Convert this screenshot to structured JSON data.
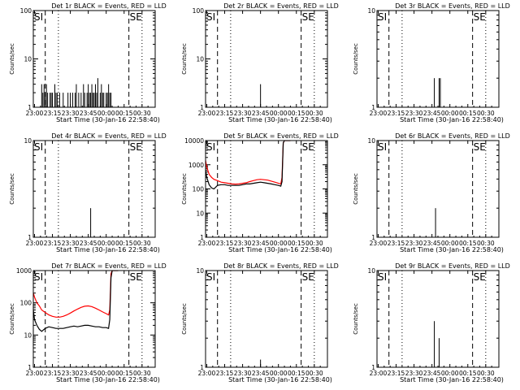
{
  "figure": {
    "xlabel": "Start Time (30-Jan-16 22:58:40)",
    "ylabel": "Counts/sec",
    "xticks": [
      "23:00",
      "23:15",
      "23:30",
      "23:45",
      "00:00",
      "00:15",
      "00:30"
    ],
    "marker_labels": {
      "start": "SI",
      "end": "SE"
    },
    "colors": {
      "events": "#000000",
      "lld": "#ff0000"
    }
  },
  "chart_data": [
    {
      "type": "line",
      "title": "Det 1r BLACK = Events, RED = LLD",
      "yscale": "log",
      "ylim": [
        1,
        100
      ],
      "yticks": [
        "1",
        "10",
        "100"
      ],
      "series": [
        {
          "name": "Events",
          "color": "#000000",
          "kind": "spikes",
          "x": [
            6,
            7,
            8,
            9,
            10,
            11,
            12,
            13,
            14,
            15,
            16,
            17,
            18,
            19,
            20,
            21,
            22,
            23,
            24,
            25,
            26,
            27,
            28,
            29,
            30,
            31,
            32,
            33,
            34,
            35,
            36,
            37,
            38,
            39,
            40,
            41,
            42,
            43,
            44,
            45,
            46,
            47,
            48,
            49,
            50,
            51,
            52,
            53,
            54,
            55,
            56,
            57,
            58,
            59,
            60,
            61,
            62,
            63,
            64
          ],
          "y": [
            3,
            2,
            3,
            2,
            3,
            2,
            1,
            2,
            2,
            2,
            1,
            3,
            2,
            2,
            1,
            2,
            1,
            1,
            2,
            1,
            1,
            1,
            2,
            1,
            2,
            1,
            2,
            1,
            2,
            3,
            1,
            2,
            1,
            2,
            1,
            3,
            2,
            1,
            2,
            3,
            2,
            2,
            3,
            2,
            2,
            3,
            2,
            4,
            1,
            2,
            3,
            2,
            2,
            1,
            2,
            2,
            3,
            2,
            2
          ]
        }
      ]
    },
    {
      "type": "line",
      "title": "Det 2r BLACK = Events, RED = LLD",
      "yscale": "log",
      "ylim": [
        1,
        100
      ],
      "yticks": [
        "1",
        "10",
        "100"
      ],
      "series": [
        {
          "name": "Events",
          "color": "#000000",
          "kind": "spikes",
          "x": [
            45
          ],
          "y": [
            3
          ]
        }
      ]
    },
    {
      "type": "line",
      "title": "Det 3r BLACK = Events, RED = LLD",
      "yscale": "log",
      "ylim": [
        1,
        10
      ],
      "yticks": [
        "1",
        "10"
      ],
      "series": [
        {
          "name": "Events",
          "color": "#000000",
          "kind": "spikes",
          "x": [
            47,
            51,
            52
          ],
          "y": [
            2,
            2,
            2
          ]
        }
      ]
    },
    {
      "type": "line",
      "title": "Det 4r BLACK = Events, RED = LLD",
      "yscale": "log",
      "ylim": [
        1,
        10
      ],
      "yticks": [
        "1",
        "10"
      ],
      "series": [
        {
          "name": "Events",
          "color": "#000000",
          "kind": "spikes",
          "x": [
            47
          ],
          "y": [
            2
          ]
        }
      ]
    },
    {
      "type": "line",
      "title": "Det 5r BLACK = Events, RED = LLD",
      "yscale": "log",
      "ylim": [
        1,
        10000
      ],
      "yticks": [
        "1",
        "10",
        "100",
        "1000",
        "10000"
      ],
      "series": [
        {
          "name": "LLD",
          "color": "#ff0000",
          "kind": "line",
          "x": [
            -2,
            -1,
            0,
            2,
            4,
            6,
            9,
            12,
            15,
            18,
            21,
            24,
            27,
            30,
            33,
            36,
            39,
            42,
            45,
            48,
            51,
            54,
            57,
            60,
            62,
            63,
            64,
            65,
            66,
            68,
            70
          ],
          "y": [
            8000,
            1500,
            800,
            400,
            300,
            250,
            220,
            190,
            180,
            170,
            160,
            158,
            160,
            170,
            180,
            200,
            220,
            240,
            250,
            240,
            230,
            210,
            190,
            170,
            160,
            300,
            8000,
            10000,
            10000,
            10000,
            10000
          ]
        },
        {
          "name": "Events",
          "color": "#000000",
          "kind": "line",
          "x": [
            -2,
            -1,
            0,
            2,
            4,
            6,
            9,
            12,
            15,
            18,
            21,
            24,
            27,
            30,
            33,
            36,
            39,
            42,
            45,
            48,
            51,
            54,
            57,
            60,
            62,
            63,
            64,
            65,
            66,
            68,
            70
          ],
          "y": [
            3000,
            600,
            300,
            150,
            110,
            100,
            140,
            150,
            150,
            140,
            140,
            140,
            140,
            150,
            160,
            160,
            170,
            180,
            190,
            180,
            170,
            160,
            150,
            140,
            130,
            200,
            8000,
            10000,
            10000,
            10000,
            10000
          ]
        }
      ]
    },
    {
      "type": "line",
      "title": "Det 6r BLACK = Events, RED = LLD",
      "yscale": "log",
      "ylim": [
        1,
        10
      ],
      "yticks": [
        "1",
        "10"
      ],
      "series": [
        {
          "name": "Events",
          "color": "#000000",
          "kind": "spikes",
          "x": [
            48
          ],
          "y": [
            2
          ]
        }
      ]
    },
    {
      "type": "line",
      "title": "Det 7r BLACK = Events, RED = LLD",
      "yscale": "log",
      "ylim": [
        1,
        1000
      ],
      "yticks": [
        "1",
        "10",
        "100",
        "1000"
      ],
      "series": [
        {
          "name": "LLD",
          "color": "#ff0000",
          "kind": "line",
          "x": [
            -2,
            -1,
            0,
            2,
            4,
            6,
            9,
            12,
            15,
            18,
            21,
            24,
            27,
            30,
            33,
            36,
            39,
            42,
            45,
            48,
            51,
            54,
            57,
            60,
            62,
            63,
            64,
            65,
            66,
            68,
            70
          ],
          "y": [
            300,
            200,
            150,
            100,
            80,
            60,
            50,
            42,
            38,
            36,
            36,
            38,
            42,
            48,
            56,
            64,
            72,
            78,
            80,
            76,
            68,
            60,
            52,
            46,
            42,
            60,
            800,
            1000,
            1000,
            1000,
            1000
          ]
        },
        {
          "name": "Events",
          "color": "#000000",
          "kind": "line",
          "x": [
            -2,
            -1,
            0,
            2,
            4,
            6,
            9,
            12,
            15,
            18,
            21,
            24,
            27,
            30,
            33,
            36,
            39,
            42,
            45,
            48,
            51,
            54,
            57,
            60,
            62,
            63,
            64,
            65,
            66,
            68,
            70
          ],
          "y": [
            150,
            60,
            30,
            20,
            15,
            13,
            16,
            18,
            17,
            16,
            16,
            16,
            17,
            18,
            19,
            18,
            19,
            20,
            20,
            19,
            18,
            18,
            17,
            17,
            16,
            30,
            600,
            1000,
            1000,
            1000,
            1000
          ]
        }
      ]
    },
    {
      "type": "line",
      "title": "Det 8r BLACK = Events, RED = LLD",
      "yscale": "log",
      "ylim": [
        1,
        10
      ],
      "yticks": [
        "1",
        "10"
      ],
      "series": [
        {
          "name": "Events",
          "color": "#000000",
          "kind": "spikes",
          "x": [
            45
          ],
          "y": [
            1.2
          ]
        }
      ]
    },
    {
      "type": "line",
      "title": "Det 9r BLACK = Events, RED = LLD",
      "yscale": "log",
      "ylim": [
        1,
        10
      ],
      "yticks": [
        "1",
        "10"
      ],
      "series": [
        {
          "name": "Events",
          "color": "#000000",
          "kind": "spikes",
          "x": [
            47,
            51
          ],
          "y": [
            3,
            2
          ]
        }
      ]
    }
  ]
}
